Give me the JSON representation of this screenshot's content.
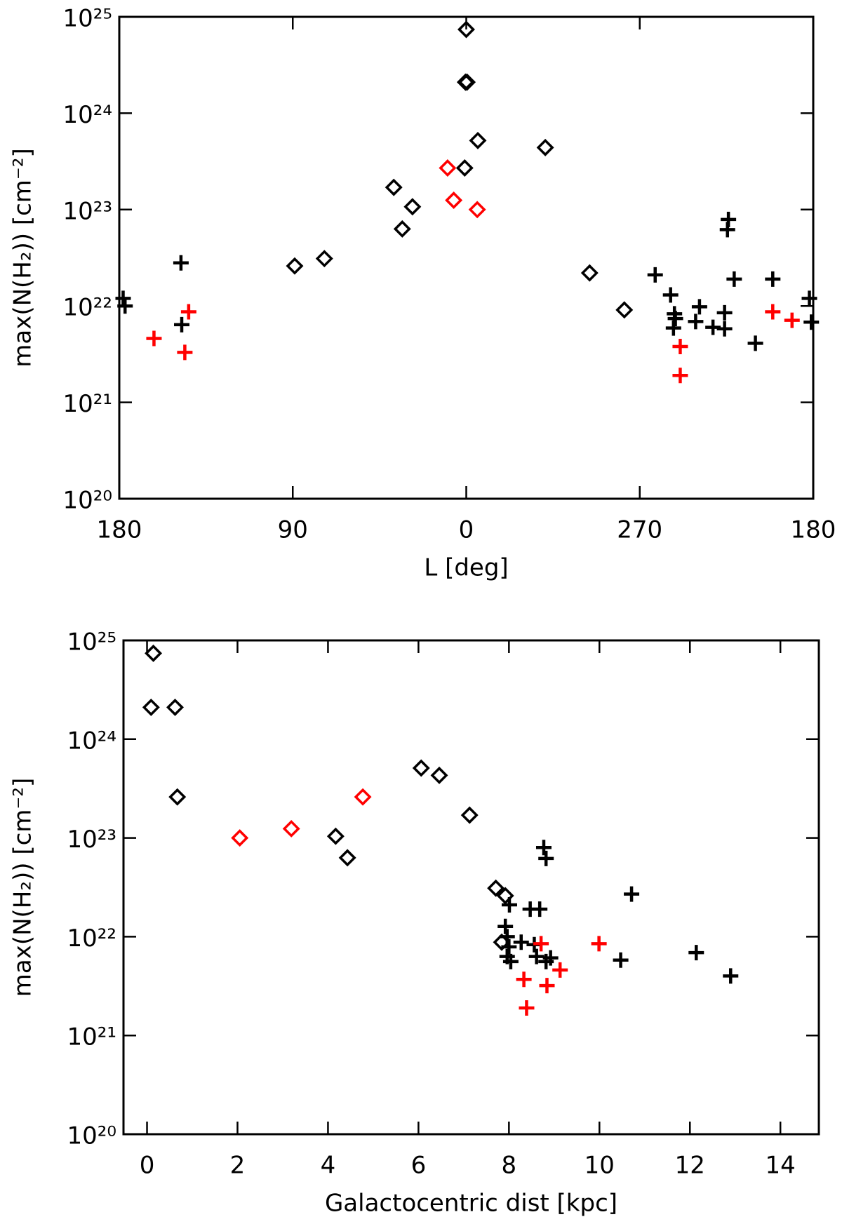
{
  "chart_data": [
    {
      "type": "scatter",
      "xlabel": "L [deg]",
      "ylabel": "max(N(H₂)) [cm⁻²]",
      "ylog": true,
      "xlim": [
        180,
        -180
      ],
      "xticks": [
        180,
        90,
        0,
        {
          "value": -90,
          "label": "270"
        },
        {
          "value": -180,
          "label": "180"
        }
      ],
      "ylim": [
        1e+20,
        1e+25
      ],
      "yticks": [
        {
          "value": 1e+20,
          "label": "10²⁰"
        },
        {
          "value": 1e+21,
          "label": "10²¹"
        },
        {
          "value": 1e+22,
          "label": "10²²"
        },
        {
          "value": 1e+23,
          "label": "10²³"
        },
        {
          "value": 1e+24,
          "label": "10²⁴"
        },
        {
          "value": 1e+25,
          "label": "10²⁵"
        }
      ],
      "series": [
        {
          "color": "#000000",
          "marker": "diamond",
          "x": [
            0,
            -0.4,
            0.4,
            -6,
            0.8,
            -41,
            37.6,
            27.9,
            33.2,
            89,
            73.6,
            -64,
            -82
          ],
          "values": [
            7.4e+24,
            2.1e+24,
            2.1e+24,
            5.2e+23,
            2.7e+23,
            4.4e+23,
            1.7e+23,
            1.07e+23,
            6.3e+22,
            2.6e+22,
            3.1e+22,
            2.2e+22,
            9.1e+21
          ]
        },
        {
          "color": "#ff0000",
          "marker": "diamond",
          "x": [
            9.7,
            6.5,
            -5.7
          ],
          "values": [
            2.7e+23,
            1.25e+23,
            1e+23
          ]
        },
        {
          "color": "#000000",
          "marker": "plus",
          "x": [
            178,
            177,
            148,
            147.6,
            -98,
            -106,
            -108,
            -108.5,
            -107.5,
            -121,
            -119,
            -136,
            -135.5,
            -139,
            -134,
            -128,
            -134,
            -150,
            -159,
            -178,
            -179
          ],
          "values": [
            1.2e+22,
            1e+22,
            2.8e+22,
            6.4e+21,
            2.1e+22,
            1.3e+22,
            8.3e+21,
            7.4e+21,
            5.9e+21,
            9.8e+21,
            6.9e+21,
            7.9e+22,
            6.2e+22,
            1.9e+22,
            8.5e+21,
            6e+21,
            5.8e+21,
            4.1e+21,
            1.9e+22,
            1.2e+22,
            6.8e+21
          ]
        },
        {
          "color": "#ff0000",
          "marker": "plus",
          "x": [
            162,
            146,
            144,
            -111,
            -111,
            -159,
            -169
          ],
          "values": [
            4.6e+21,
            3.3e+21,
            8.7e+21,
            3.8e+21,
            1.9e+21,
            8.7e+21,
            7.1e+21
          ]
        }
      ]
    },
    {
      "type": "scatter",
      "xlabel": "Galactocentric dist [kpc]",
      "ylabel": "max(N(H₂)) [cm⁻²]",
      "ylog": true,
      "xlim": [
        -0.52,
        14.85
      ],
      "xticks": [
        0,
        2,
        4,
        6,
        8,
        10,
        12,
        14
      ],
      "ylim": [
        1e+20,
        1e+25
      ],
      "yticks": [
        {
          "value": 1e+20,
          "label": "10²⁰"
        },
        {
          "value": 1e+21,
          "label": "10²¹"
        },
        {
          "value": 1e+22,
          "label": "10²²"
        },
        {
          "value": 1e+23,
          "label": "10²³"
        },
        {
          "value": 1e+24,
          "label": "10²⁴"
        },
        {
          "value": 1e+25,
          "label": "10²⁵"
        }
      ],
      "series": [
        {
          "color": "#000000",
          "marker": "diamond",
          "x": [
            0.14,
            0.09,
            0.62,
            0.67,
            6.06,
            6.46,
            7.13,
            4.17,
            4.43,
            7.71,
            7.92,
            7.84
          ],
          "values": [
            7.4e+24,
            2.1e+24,
            2.1e+24,
            2.6e+23,
            5.1e+23,
            4.3e+23,
            1.7e+23,
            1.04e+23,
            6.3e+22,
            3.1e+22,
            2.6e+22,
            8.8e+21
          ]
        },
        {
          "color": "#ff0000",
          "marker": "diamond",
          "x": [
            2.05,
            3.19,
            4.77
          ],
          "values": [
            1e+23,
            1.24e+23,
            2.6e+23
          ]
        },
        {
          "color": "#000000",
          "marker": "plus",
          "x": [
            8.77,
            8.82,
            8.01,
            8.47,
            8.68,
            7.92,
            7.96,
            8.0,
            7.96,
            8.04,
            8.27,
            8.56,
            8.61,
            8.82,
            8.92,
            10.71,
            10.47,
            12.14,
            12.9
          ],
          "values": [
            8e+22,
            6.2e+22,
            2.1e+22,
            1.9e+22,
            1.9e+22,
            1.27e+22,
            1e+22,
            7.9e+21,
            6.3e+21,
            5.6e+21,
            8.8e+21,
            8.3e+21,
            6.3e+21,
            5.6e+21,
            6.1e+21,
            2.7e+22,
            5.8e+21,
            6.9e+21,
            4e+21
          ]
        },
        {
          "color": "#ff0000",
          "marker": "plus",
          "x": [
            8.71,
            8.33,
            8.39,
            8.84,
            9.13,
            9.99
          ],
          "values": [
            8.5e+21,
            3.7e+21,
            1.9e+21,
            3.2e+21,
            4.6e+21,
            8.5e+21
          ]
        }
      ]
    }
  ]
}
